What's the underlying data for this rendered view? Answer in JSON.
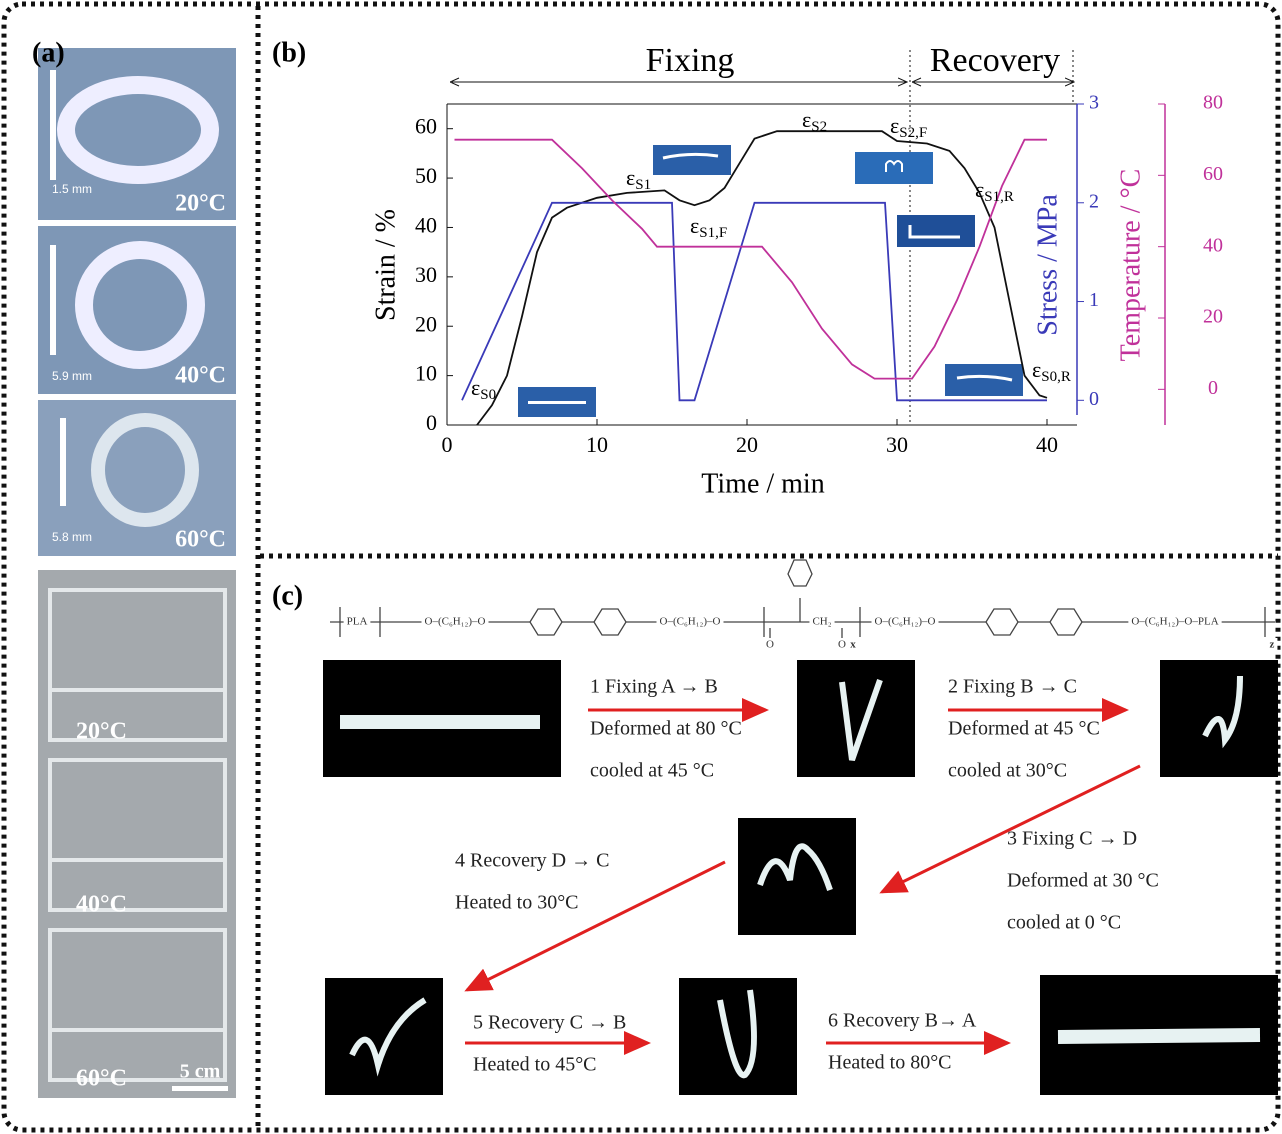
{
  "panel_a": {
    "label": "(a)",
    "rings": [
      {
        "scale": "1.5 mm",
        "temperature": "20°C"
      },
      {
        "scale": "5.9 mm",
        "temperature": "40°C"
      },
      {
        "scale": "5.8 mm",
        "temperature": "60°C"
      }
    ],
    "clamps": [
      "20°C",
      "40°C",
      "60°C"
    ],
    "scale_bar": "5 cm"
  },
  "chart_data": {
    "type": "line",
    "label": "(b)",
    "phases": [
      "Fixing",
      "Recovery"
    ],
    "xlabel": "Time / min",
    "ylabel": "Strain / %",
    "y2label": "Stress / MPa",
    "y3label": "Temperature / °C",
    "xlim": [
      0,
      42
    ],
    "xticks": [
      0,
      10,
      20,
      30,
      40
    ],
    "ylim": [
      0,
      65
    ],
    "yticks": [
      0,
      10,
      20,
      30,
      40,
      50,
      60
    ],
    "y2lim": [
      -0.25,
      3
    ],
    "y2ticks": [
      0,
      1,
      2,
      3
    ],
    "y3lim": [
      -10,
      80
    ],
    "y3ticks": [
      0,
      20,
      40,
      60,
      80
    ],
    "series": [
      {
        "axis": "y",
        "color": "#111111",
        "x": [
          2,
          3,
          4,
          5,
          6,
          7,
          8,
          10,
          12,
          14.5,
          15.5,
          16.5,
          17.5,
          18.5,
          19.5,
          20.5,
          22,
          29,
          30,
          32,
          33.5,
          34.5,
          35.5,
          36.5,
          37.5,
          38.5,
          39.5,
          40
        ],
        "values": [
          0,
          4,
          10,
          22,
          35,
          42,
          44,
          46,
          47,
          47.5,
          45.5,
          44.5,
          45.5,
          48,
          53,
          58,
          59.5,
          59.5,
          57.5,
          57,
          55.5,
          52,
          47,
          40,
          25,
          10,
          6,
          5.5
        ]
      },
      {
        "axis": "y2",
        "color": "#3a3ab8",
        "x": [
          1,
          7,
          15,
          15.5,
          16.5,
          20.5,
          29.2,
          30,
          40
        ],
        "values": [
          0,
          2,
          2,
          0,
          0,
          2,
          2,
          0,
          0
        ]
      },
      {
        "axis": "y3",
        "color": "#c0319a",
        "x": [
          0.5,
          7,
          9,
          11,
          13,
          14,
          21,
          23,
          25,
          27,
          28.5,
          31,
          32.5,
          34,
          35.5,
          37,
          38.5,
          40
        ],
        "values": [
          70,
          70,
          62,
          53,
          45,
          40,
          40,
          30,
          17,
          7,
          3,
          3,
          12,
          25,
          40,
          57,
          70,
          70
        ]
      }
    ],
    "annotations": [
      {
        "symbol": "ε",
        "subscript": "S0"
      },
      {
        "symbol": "ε",
        "subscript": "S1"
      },
      {
        "symbol": "ε",
        "subscript": "S1,F"
      },
      {
        "symbol": "ε",
        "subscript": "S2"
      },
      {
        "symbol": "ε",
        "subscript": "S2,F"
      },
      {
        "symbol": "ε",
        "subscript": "S1,R"
      },
      {
        "symbol": "ε",
        "subscript": "S0,R"
      }
    ]
  },
  "panel_c": {
    "label": "(c)",
    "formula": [
      "PLA",
      "O–(C₆H₁₂)–O",
      "O–(C₆H₁₂)–O",
      "CH₂",
      "O",
      "O",
      "x",
      "O–(C₆H₁₂)–O",
      "O–(C₆H₁₂)–O–PLA",
      "z"
    ],
    "steps": [
      {
        "title": "1 Fixing A → B",
        "lines": [
          "Deformed at 80 °C",
          "cooled at 45 °C"
        ]
      },
      {
        "title": "2 Fixing B → C",
        "lines": [
          "Deformed at 45 °C",
          "cooled at 30°C"
        ]
      },
      {
        "title": "3 Fixing C → D",
        "lines": [
          "Deformed at 30 °C",
          "cooled at 0 °C"
        ]
      },
      {
        "title": "4 Recovery D → C",
        "lines": [
          "Heated to 30°C"
        ]
      },
      {
        "title": "5 Recovery C → B",
        "lines": [
          "Heated to 45°C"
        ]
      },
      {
        "title": "6 Recovery B→ A",
        "lines": [
          "Heated to 80°C"
        ]
      }
    ]
  }
}
